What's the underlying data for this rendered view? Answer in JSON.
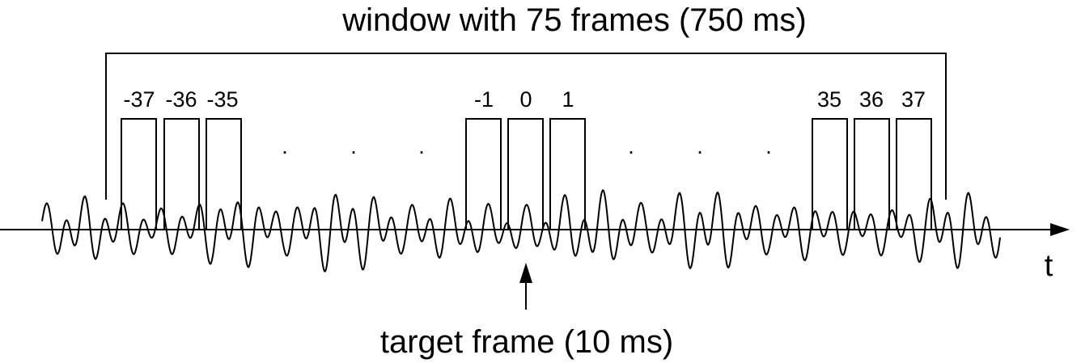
{
  "diagram": {
    "window_label": "window with 75 frames (750 ms)",
    "axis_label": "t",
    "target_label": "target frame (10 ms)",
    "frames_left": [
      "-37",
      "-36",
      "-35"
    ],
    "frames_center": [
      "-1",
      "0",
      "1"
    ],
    "frames_right": [
      "35",
      "36",
      "37"
    ],
    "ellipsis_marks": [
      ".",
      ".",
      ".",
      ".",
      ".",
      "."
    ],
    "colors": {
      "line": "#000000",
      "background": "#ffffff"
    }
  }
}
